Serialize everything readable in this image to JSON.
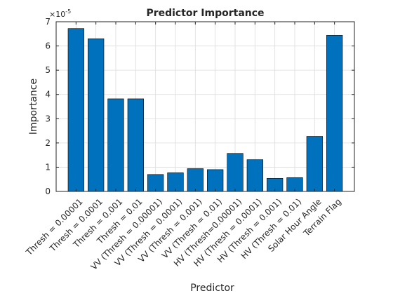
{
  "chart_data": {
    "type": "bar",
    "title": "Predictor Importance",
    "xlabel": "Predictor",
    "ylabel": "Importance",
    "y_multiplier_base": "×10",
    "y_multiplier_exp": "-5",
    "ylim": [
      0,
      7
    ],
    "yticks": [
      "0",
      "1",
      "2",
      "3",
      "4",
      "5",
      "6",
      "7"
    ],
    "grid": true,
    "bar_color": "#0072bd",
    "categories": [
      "Thresh = 0.00001",
      "Thresh = 0.0001",
      "Thresh = 0.001",
      "Thresh = 0.01",
      "VV (Thresh = 0.00001)",
      "VV (Thresh = 0.0001)",
      "VV (Thresh = 0.001)",
      "VV (Thresh = 0.01)",
      "HV (Thresh=0.00001)",
      "HV (Thresh = 0.0001)",
      "HV (Thresh = 0.001)",
      "HV (Thresh = 0.01)",
      "Solar Hour Angle",
      "Terrain Flag"
    ],
    "values": [
      6.72,
      6.3,
      3.82,
      3.82,
      0.7,
      0.77,
      0.94,
      0.9,
      1.57,
      1.31,
      0.54,
      0.57,
      2.27,
      6.44
    ]
  }
}
